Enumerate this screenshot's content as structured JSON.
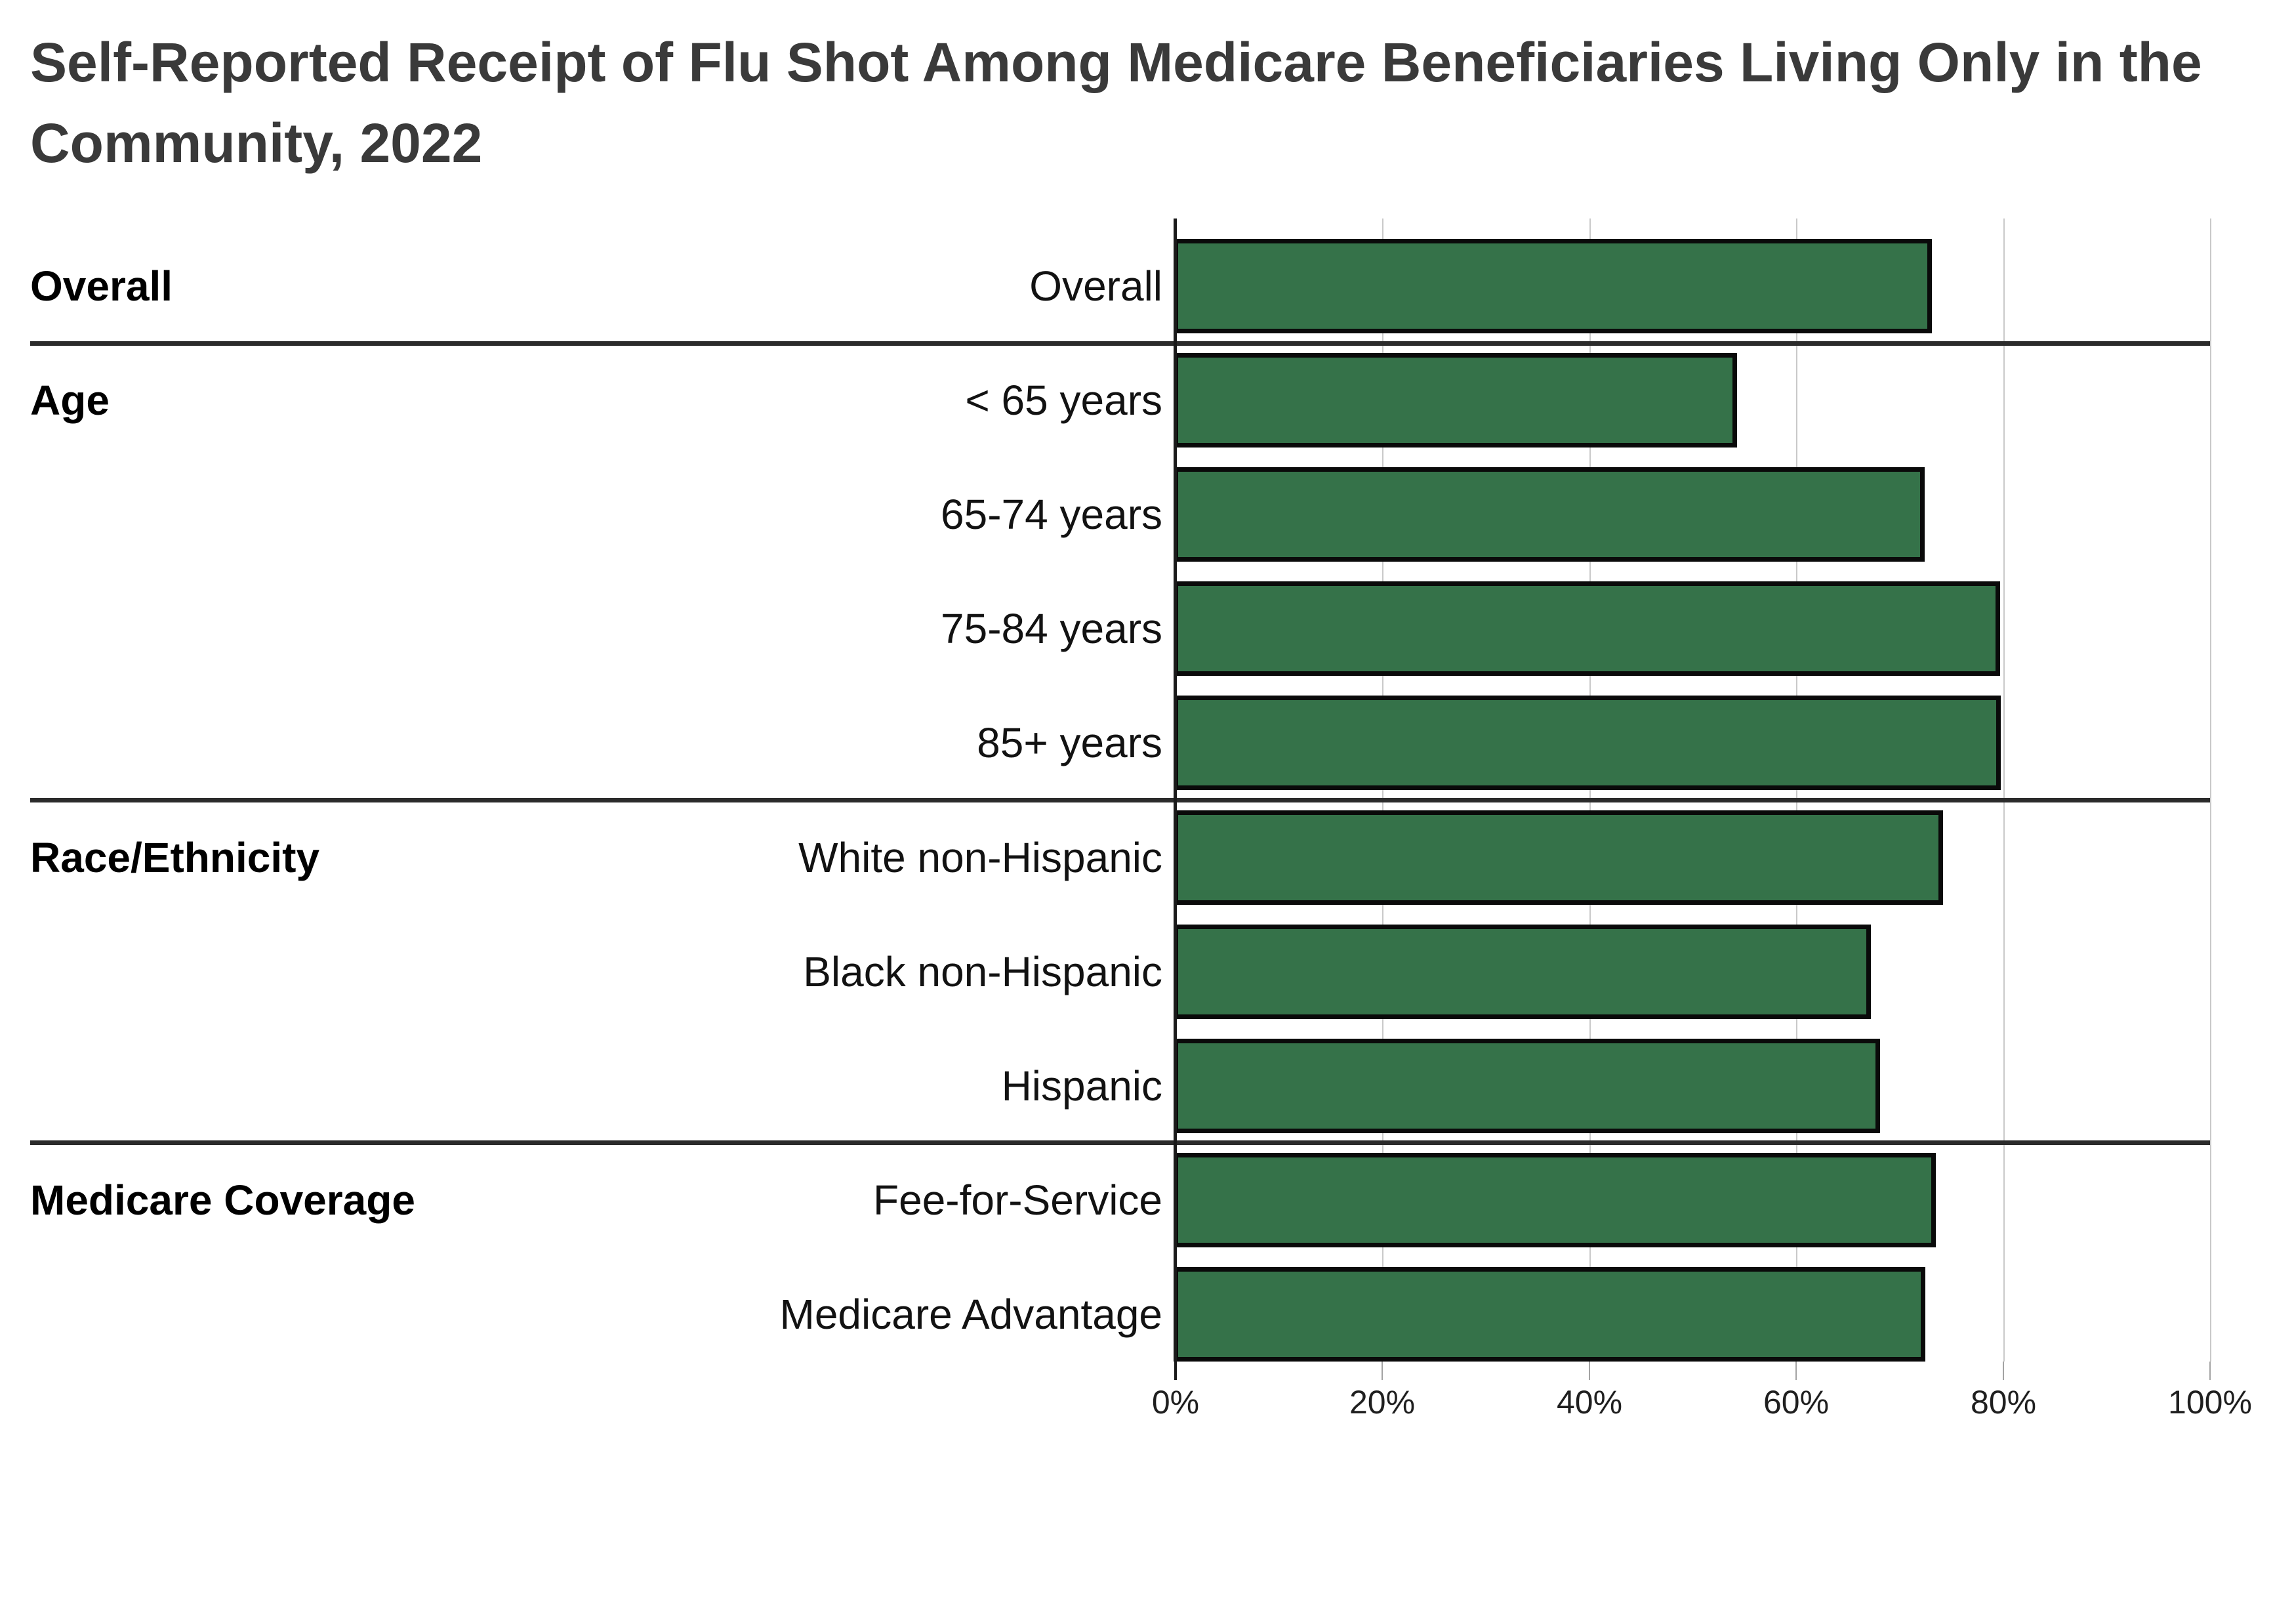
{
  "title": "Self-Reported Receipt of Flu Shot Among Medicare Beneficiaries Living Only in the Community, 2022",
  "title_lines": [
    "Self-Reported Receipt of Flu Shot Among Medicare Beneficiaries Living Only in the",
    "Community, 2022"
  ],
  "chart_data": {
    "type": "bar",
    "orientation": "horizontal",
    "title": "Self-Reported Receipt of Flu Shot Among Medicare Beneficiaries Living Only in the Community, 2022",
    "xlabel": "",
    "ylabel": "",
    "units": "percent",
    "xlim": [
      0,
      100
    ],
    "x_tick_values": [
      0,
      20,
      40,
      60,
      80,
      100
    ],
    "x_ticks": [
      "0%",
      "20%",
      "40%",
      "60%",
      "80%",
      "100%"
    ],
    "grid": "vertical-gridlines-on",
    "legend": "none",
    "bar_color": "#357249",
    "bar_border_color": "#0a0a0a",
    "groups": [
      {
        "label": "Overall",
        "rows": [
          {
            "label": "Overall",
            "value": 73.1
          }
        ]
      },
      {
        "label": "Age",
        "rows": [
          {
            "label": "< 65 years",
            "value": 54.3
          },
          {
            "label": "65-74 years",
            "value": 72.4
          },
          {
            "label": "75-84 years",
            "value": 79.7
          },
          {
            "label": "85+ years",
            "value": 79.8
          }
        ]
      },
      {
        "label": "Race/Ethnicity",
        "rows": [
          {
            "label": "White non-Hispanic",
            "value": 74.2
          },
          {
            "label": "Black non-Hispanic",
            "value": 67.2
          },
          {
            "label": "Hispanic",
            "value": 68.1
          }
        ]
      },
      {
        "label": "Medicare Coverage",
        "rows": [
          {
            "label": "Fee-for-Service",
            "value": 73.5
          },
          {
            "label": "Medicare Advantage",
            "value": 72.5
          }
        ]
      }
    ]
  }
}
